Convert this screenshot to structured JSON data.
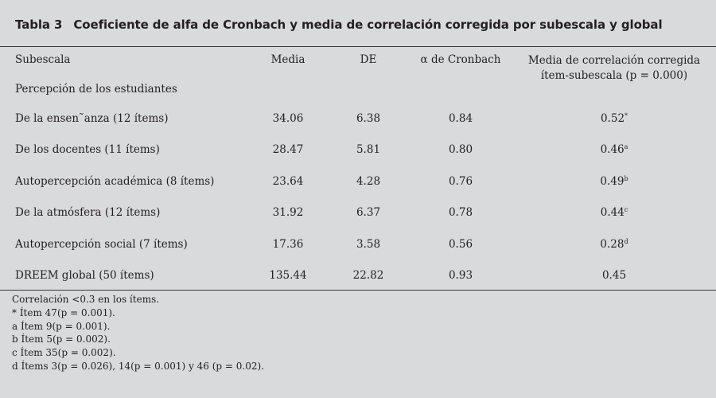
{
  "table": {
    "label": "Tabla 3",
    "title": "Coeficiente de alfa de Cronbach y media de correlación corregida por subescala y global",
    "headers": {
      "subescala": "Subescala",
      "media": "Media",
      "de": "DE",
      "alpha": "α  de Cronbach",
      "correlacion_line1": "Media de correlación corregida",
      "correlacion_line2": "ítem-subescala (p = 0.000)"
    },
    "subsection": "Percepción de los estudiantes",
    "rows": [
      {
        "subescala": "De la ensen˜anza (12 ítems)",
        "media": "34.06",
        "de": "6.38",
        "alpha": "0.84",
        "corr": "0.52",
        "mark": "*"
      },
      {
        "subescala": "De los docentes (11 ítems)",
        "media": "28.47",
        "de": "5.81",
        "alpha": "0.80",
        "corr": "0.46",
        "mark": "a"
      },
      {
        "subescala": "Autopercepción académica (8 ítems)",
        "media": "23.64",
        "de": "4.28",
        "alpha": "0.76",
        "corr": "0.49",
        "mark": "b"
      },
      {
        "subescala": "De la atmósfera (12 ítems)",
        "media": "31.92",
        "de": "6.37",
        "alpha": "0.78",
        "corr": "0.44",
        "mark": "c"
      },
      {
        "subescala": "Autopercepción social (7 ítems)",
        "media": "17.36",
        "de": "3.58",
        "alpha": "0.56",
        "corr": "0.28",
        "mark": "d"
      },
      {
        "subescala": "DREEM global (50 ítems)",
        "media": "135.44",
        "de": "22.82",
        "alpha": "0.93",
        "corr": "0.45",
        "mark": ""
      }
    ],
    "notes": [
      "Correlación <0.3 en los ítems.",
      "*  Ítem 47(p = 0.001).",
      "a  Ítem 9(p = 0.001).",
      "b  Ítem 5(p = 0.002).",
      "c  Ítem 35(p = 0.002).",
      "d  Ítems 3(p = 0.026), 14(p = 0.001) y 46 (p = 0.02)."
    ]
  }
}
